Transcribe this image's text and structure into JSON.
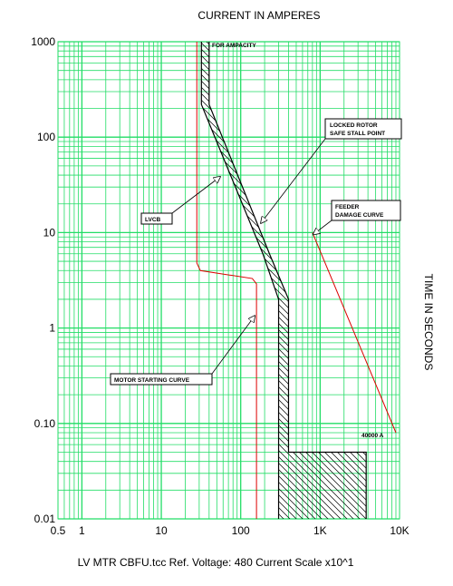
{
  "chart_data": {
    "type": "line",
    "title": "CURRENT IN AMPERES",
    "xlabel": "CURRENT IN AMPERES",
    "ylabel": "TIME IN SECONDS",
    "footer": "LV MTR CBFU.tcc   Ref. Voltage: 480   Current Scale x10^1",
    "x_scale": "log",
    "y_scale": "log",
    "xlim": [
      0.5,
      10000
    ],
    "ylim": [
      0.01,
      1000
    ],
    "grid": true,
    "x_ticks": [
      "0.5",
      "1",
      "10",
      "100",
      "1K",
      "10K"
    ],
    "y_ticks": [
      "1000",
      "100",
      "10",
      "1",
      "0.10",
      "0.01"
    ],
    "colors": {
      "grid": "#22dd66",
      "motor": "#dd0000",
      "breaker": "#000000"
    },
    "series": [
      {
        "name": "",
        "role": "motor-starting",
        "points": [
          [
            28,
            1000
          ],
          [
            28,
            4.8
          ],
          [
            31,
            4.0
          ],
          [
            140,
            3.3
          ],
          [
            158,
            2.9
          ],
          [
            158,
            0.01
          ]
        ]
      },
      {
        "name": "",
        "role": "feeder-damage",
        "points": [
          [
            800,
            10
          ],
          [
            9000,
            0.08
          ]
        ]
      },
      {
        "name": "",
        "role": "breaker-left",
        "points": [
          [
            32,
            1000
          ],
          [
            32,
            220
          ],
          [
            190,
            6
          ],
          [
            300,
            2
          ],
          [
            300,
            0.01
          ]
        ]
      },
      {
        "name": "",
        "role": "breaker-right",
        "points": [
          [
            40,
            1000
          ],
          [
            40,
            220
          ],
          [
            230,
            6
          ],
          [
            400,
            2
          ],
          [
            400,
            0.05
          ],
          [
            3800,
            0.05
          ],
          [
            3800,
            0.01
          ]
        ]
      }
    ],
    "annotations": [
      {
        "text": "FOR AMPACITY",
        "x": 35,
        "y": 1000,
        "color": "#dd0000"
      },
      {
        "text": "LOCKED ROTOR",
        "x": 180,
        "y": 15
      },
      {
        "text": "SAFE STALL POINT",
        "x": 180,
        "y": 15
      },
      {
        "text": "FEEDER",
        "x": 800,
        "y": 10
      },
      {
        "text": "DAMAGE CURVE",
        "x": 800,
        "y": 10
      },
      {
        "text": "LVCB",
        "x": 55,
        "y": 36
      },
      {
        "text": "MOTOR STARTING CURVE",
        "x": 158,
        "y": 1.4
      },
      {
        "text": "40000 A",
        "x": 9000,
        "y": 0.08
      }
    ]
  }
}
